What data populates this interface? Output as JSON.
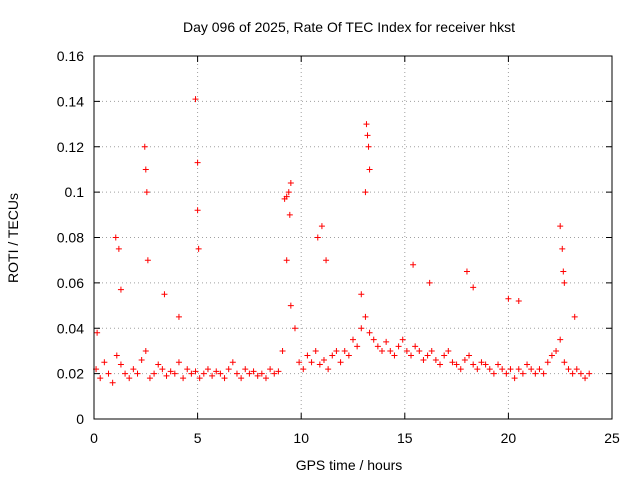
{
  "chart_data": {
    "type": "scatter",
    "title": "Day 096 of 2025, Rate Of TEC Index for receiver hkst",
    "xlabel": "GPS time / hours",
    "ylabel": "ROTI / TECUs",
    "xlim": [
      0,
      25
    ],
    "ylim": [
      0,
      0.16
    ],
    "x_ticks": [
      "0",
      "5",
      "10",
      "15",
      "20",
      "25"
    ],
    "y_ticks": [
      "0",
      "0.02",
      "0.04",
      "0.06",
      "0.08",
      "0.1",
      "0.12",
      "0.14",
      "0.16"
    ],
    "grid": true,
    "marker": "plus",
    "color": "#ff0000",
    "series": [
      {
        "x": [
          0.1,
          0.3,
          0.5,
          0.7,
          0.9,
          1.1,
          1.3,
          1.5,
          1.7,
          1.9,
          2.1,
          2.3,
          2.5,
          2.7,
          2.9,
          3.1,
          3.3,
          3.5,
          3.7,
          3.9,
          4.1,
          4.3,
          4.5,
          4.7,
          4.9,
          5.1,
          5.3,
          5.5,
          5.7,
          5.9,
          6.1,
          6.3,
          6.5,
          6.7,
          6.9,
          7.1,
          7.3,
          7.5,
          7.7,
          7.9,
          8.1,
          8.3,
          8.5,
          8.7,
          8.9,
          9.1,
          9.3,
          9.5,
          9.7,
          9.9,
          10.1,
          10.3,
          10.5,
          10.7,
          10.9,
          11.1,
          11.3,
          11.5,
          11.7,
          11.9,
          12.1,
          12.3,
          12.5,
          12.7,
          12.9,
          13.1,
          13.3,
          13.5,
          13.7,
          13.9,
          14.1,
          14.3,
          14.5,
          14.7,
          14.9,
          15.1,
          15.3,
          15.5,
          15.7,
          15.9,
          16.1,
          16.3,
          16.5,
          16.7,
          16.9,
          17.1,
          17.3,
          17.5,
          17.7,
          17.9,
          18.1,
          18.3,
          18.5,
          18.7,
          18.9,
          19.1,
          19.3,
          19.5,
          19.7,
          19.9,
          20.1,
          20.3,
          20.5,
          20.7,
          20.9,
          21.1,
          21.3,
          21.5,
          21.7,
          21.9,
          22.1,
          22.3,
          22.5,
          22.7,
          22.9,
          23.1,
          23.3,
          23.5,
          23.7,
          23.9,
          0.15,
          1.05,
          1.2,
          1.3,
          2.45,
          2.5,
          2.55,
          2.6,
          3.4,
          4.1,
          4.9,
          5.0,
          5.0,
          5.05,
          9.2,
          9.3,
          9.4,
          9.5,
          9.45,
          10.8,
          11.0,
          11.2,
          12.9,
          13.1,
          13.15,
          13.2,
          13.25,
          13.3,
          15.4,
          16.2,
          18.0,
          18.3,
          20.0,
          20.5,
          22.5,
          22.6,
          22.7,
          22.65,
          23.2
        ],
        "y": [
          0.022,
          0.018,
          0.025,
          0.02,
          0.016,
          0.028,
          0.024,
          0.02,
          0.018,
          0.022,
          0.02,
          0.026,
          0.03,
          0.018,
          0.02,
          0.024,
          0.022,
          0.019,
          0.021,
          0.02,
          0.025,
          0.018,
          0.022,
          0.02,
          0.021,
          0.018,
          0.02,
          0.022,
          0.019,
          0.021,
          0.02,
          0.018,
          0.022,
          0.025,
          0.02,
          0.018,
          0.022,
          0.02,
          0.021,
          0.019,
          0.02,
          0.018,
          0.022,
          0.02,
          0.021,
          0.03,
          0.07,
          0.05,
          0.04,
          0.025,
          0.022,
          0.028,
          0.025,
          0.03,
          0.024,
          0.026,
          0.022,
          0.028,
          0.03,
          0.025,
          0.03,
          0.028,
          0.035,
          0.032,
          0.04,
          0.045,
          0.038,
          0.035,
          0.032,
          0.03,
          0.034,
          0.03,
          0.028,
          0.032,
          0.035,
          0.03,
          0.028,
          0.032,
          0.03,
          0.026,
          0.028,
          0.03,
          0.026,
          0.024,
          0.028,
          0.03,
          0.025,
          0.024,
          0.022,
          0.026,
          0.028,
          0.024,
          0.022,
          0.025,
          0.024,
          0.022,
          0.02,
          0.024,
          0.022,
          0.02,
          0.022,
          0.018,
          0.022,
          0.02,
          0.024,
          0.022,
          0.02,
          0.022,
          0.02,
          0.025,
          0.028,
          0.03,
          0.035,
          0.025,
          0.022,
          0.02,
          0.022,
          0.02,
          0.018,
          0.02,
          0.038,
          0.08,
          0.075,
          0.057,
          0.12,
          0.11,
          0.1,
          0.07,
          0.055,
          0.045,
          0.141,
          0.113,
          0.092,
          0.075,
          0.097,
          0.098,
          0.1,
          0.104,
          0.09,
          0.08,
          0.085,
          0.07,
          0.055,
          0.1,
          0.13,
          0.125,
          0.12,
          0.11,
          0.068,
          0.06,
          0.065,
          0.058,
          0.053,
          0.052,
          0.085,
          0.075,
          0.06,
          0.065,
          0.045
        ]
      }
    ]
  }
}
